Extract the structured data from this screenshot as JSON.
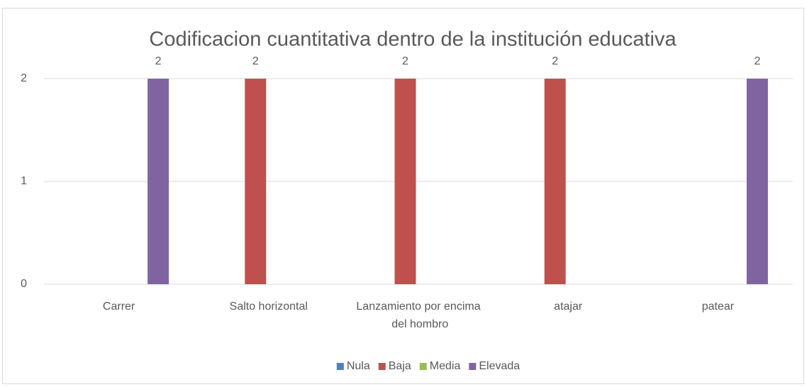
{
  "chart_data": {
    "type": "bar",
    "title": "Codificacion cuantitativa dentro de la institución educativa",
    "categories": [
      "Carrer",
      "Salto horizontal",
      "Lanzamiento por encima del hombro",
      "atajar",
      "patear"
    ],
    "series": [
      {
        "name": "Nula",
        "color": "#4f81bd",
        "values": [
          null,
          null,
          null,
          null,
          null
        ]
      },
      {
        "name": "Baja",
        "color": "#c0504d",
        "values": [
          null,
          2,
          2,
          2,
          null
        ]
      },
      {
        "name": "Media",
        "color": "#9bbb59",
        "values": [
          null,
          null,
          null,
          null,
          null
        ]
      },
      {
        "name": "Elevada",
        "color": "#8064a2",
        "values": [
          2,
          null,
          null,
          null,
          2
        ]
      }
    ],
    "ylim": [
      0,
      2
    ],
    "yticks": [
      0,
      1,
      2
    ],
    "grid": true,
    "legend": "bottom"
  }
}
